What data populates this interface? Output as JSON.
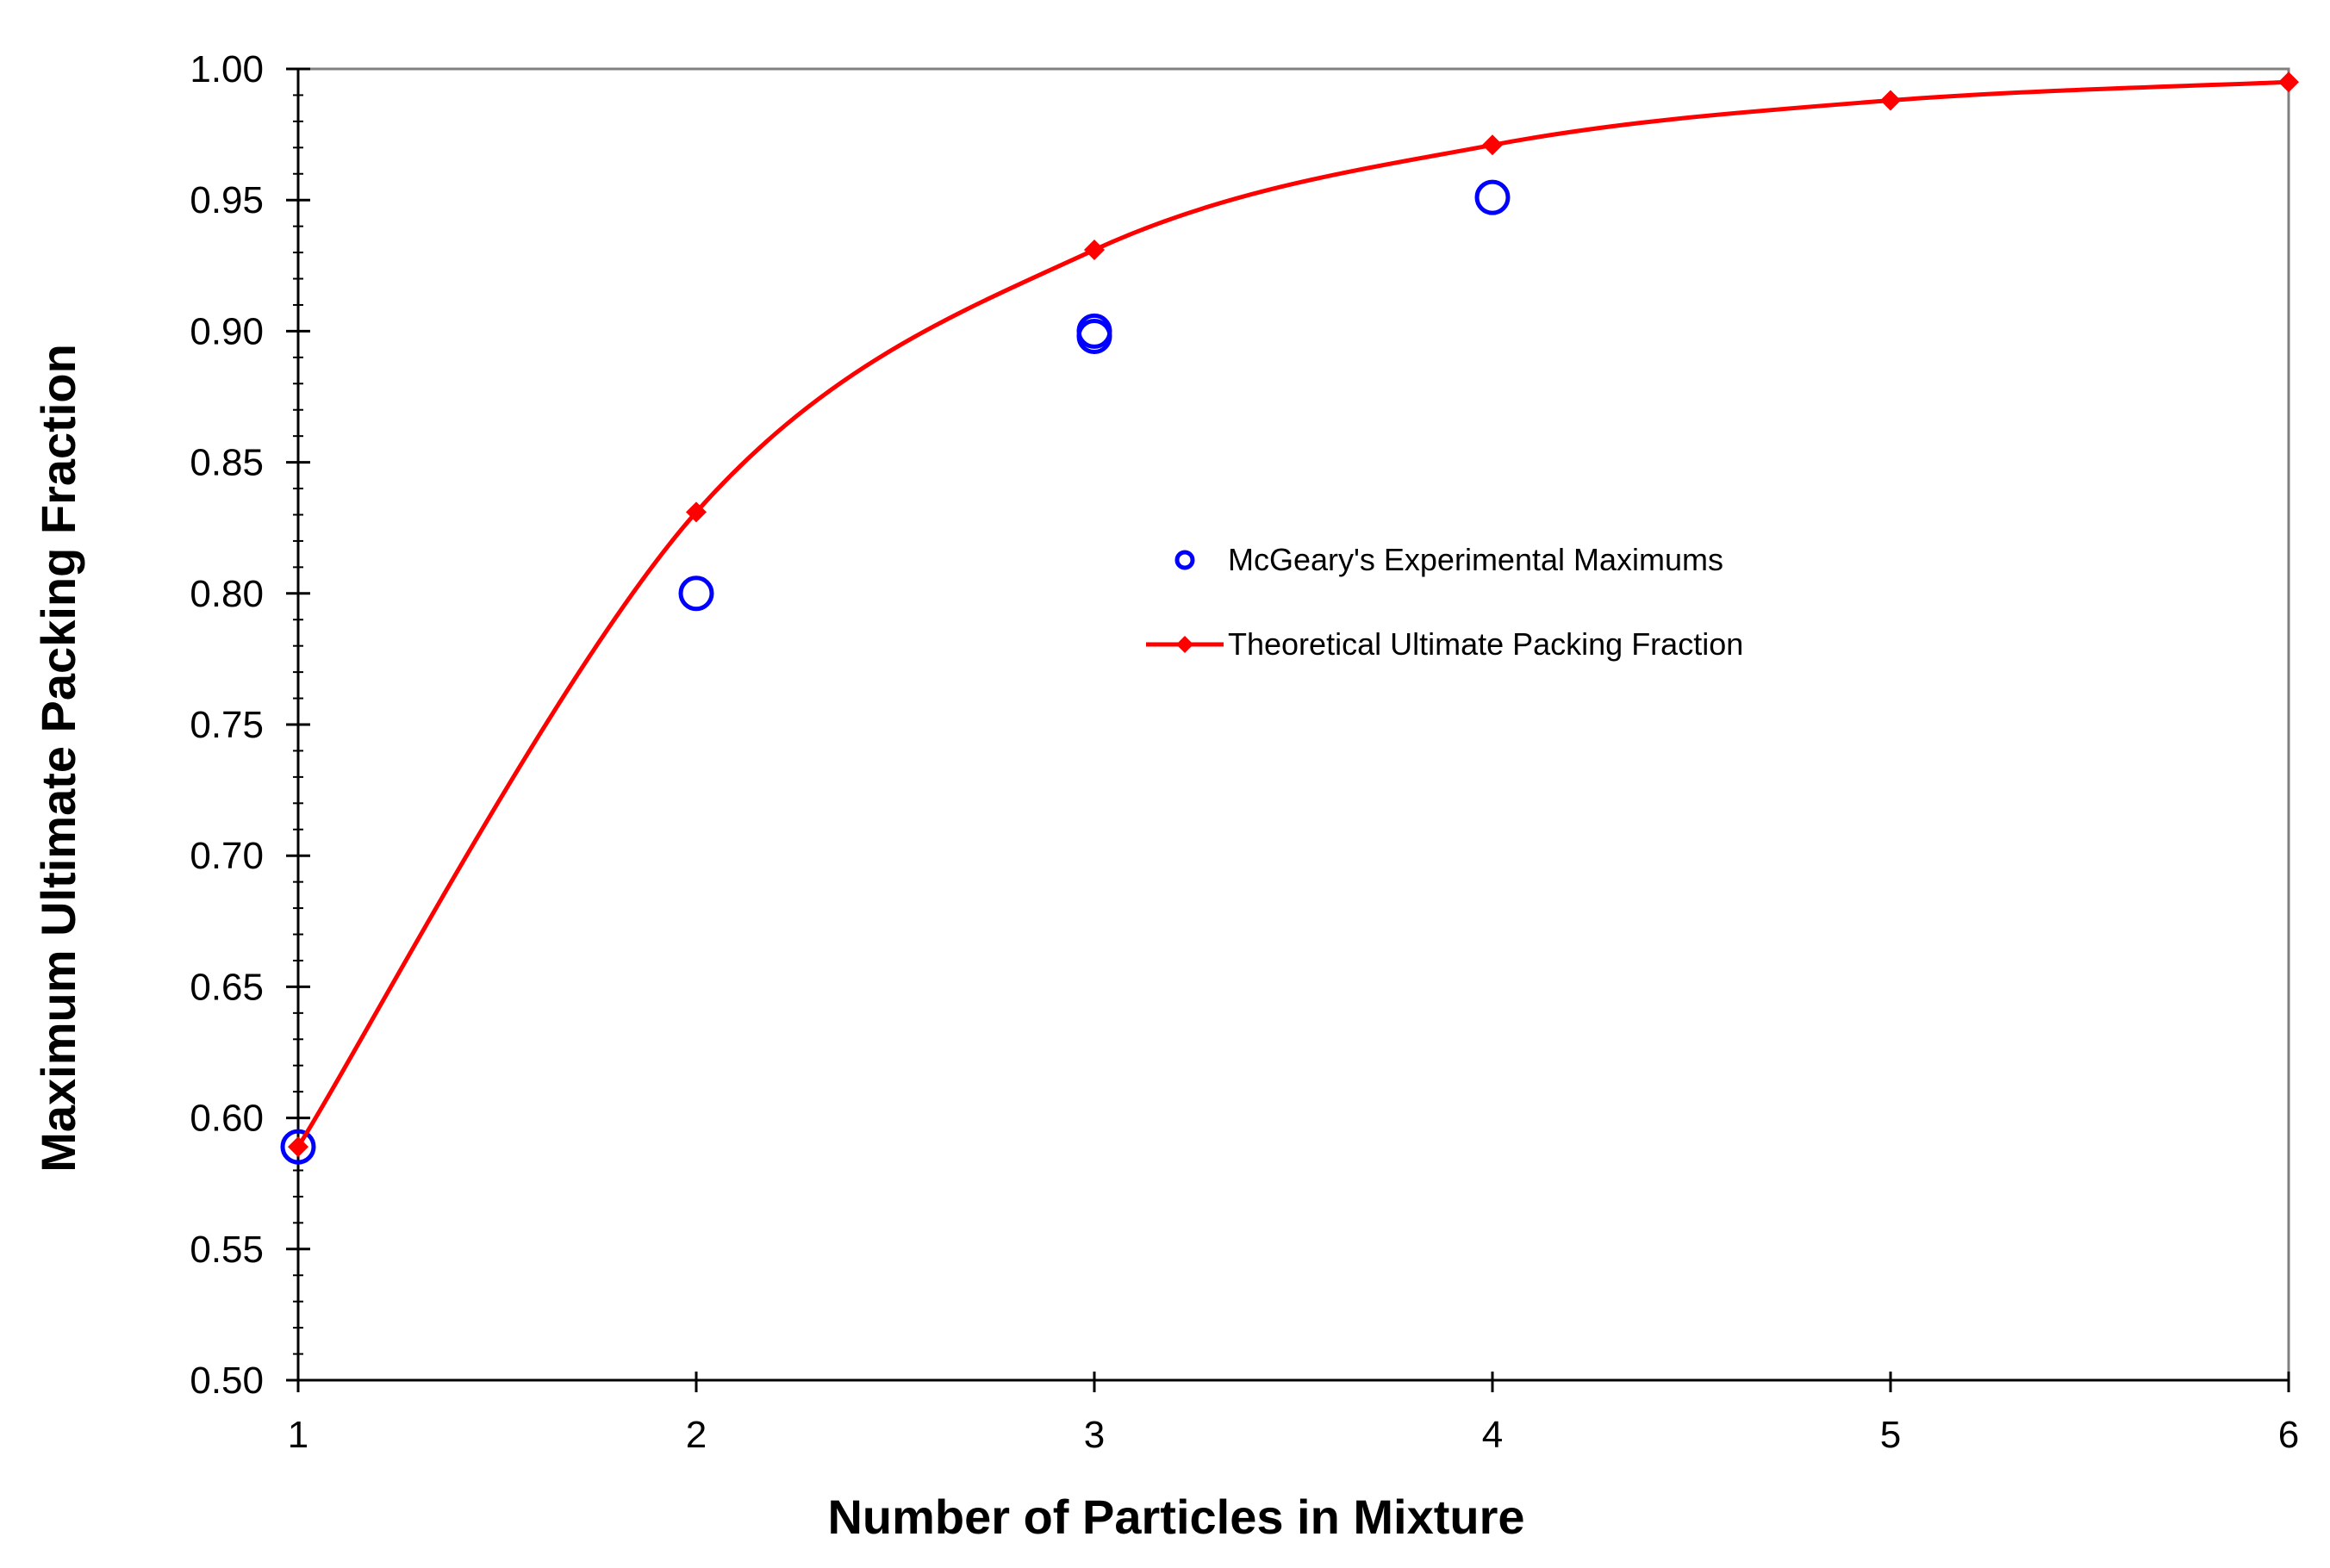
{
  "chart_data": {
    "type": "scatter",
    "title": "",
    "xlabel": "Number of Particles in Mixture",
    "ylabel": "Maximum Ultimate Packing Fraction",
    "xlim": [
      1,
      6
    ],
    "ylim": [
      0.5,
      1.0
    ],
    "x_ticks": [
      "1",
      "2",
      "3",
      "4",
      "5",
      "6"
    ],
    "y_ticks": [
      "0.50",
      "0.55",
      "0.60",
      "0.65",
      "0.70",
      "0.75",
      "0.80",
      "0.85",
      "0.90",
      "0.95",
      "1.00"
    ],
    "y_minor_step": 0.01,
    "grid": false,
    "legend_position": "center-right",
    "series": [
      {
        "name": "McGeary's Experimental Maximums",
        "style": "open-circle",
        "color": "#0000ff",
        "x": [
          1,
          2,
          3,
          3,
          4
        ],
        "y": [
          0.589,
          0.8,
          0.9,
          0.898,
          0.951
        ]
      },
      {
        "name": "Theoretical Ultimate Packing Fraction",
        "style": "smooth-line-diamond",
        "color": "#ff0000",
        "x": [
          1,
          2,
          3,
          4,
          5,
          6
        ],
        "y": [
          0.589,
          0.831,
          0.931,
          0.971,
          0.988,
          0.995
        ]
      }
    ]
  }
}
